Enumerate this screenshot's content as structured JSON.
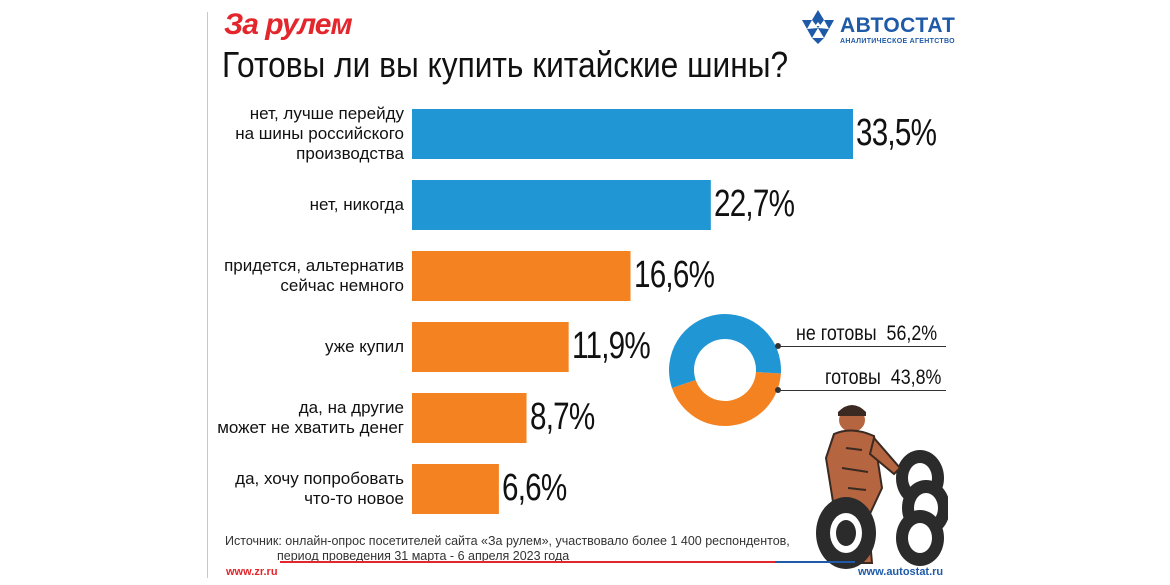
{
  "header": {
    "brand": "За рулем",
    "logo_name": "АВТОСТАТ",
    "logo_subtitle": "АНАЛИТИЧЕСКОЕ АГЕНТСТВО",
    "logo_icon": "snowflake-icon"
  },
  "chart_data": [
    {
      "type": "bar",
      "orientation": "horizontal",
      "title": "Готовы ли вы купить китайские шины?",
      "categories": [
        "нет, лучше перейду\nна шины российского\nпроизводства",
        "нет, никогда",
        "придется, альтернатив\nсейчас немного",
        "уже купил",
        "да, на другие\nможет не хватить денег",
        "да, хочу попробовать\nчто-то новое"
      ],
      "values": [
        33.5,
        22.7,
        16.6,
        11.9,
        8.7,
        6.6
      ],
      "value_labels": [
        "33,5%",
        "22,7%",
        "16,6%",
        "11,9%",
        "8,7%",
        "6,6%"
      ],
      "bar_colors": [
        "#2196d4",
        "#2196d4",
        "#f58220",
        "#f58220",
        "#f58220",
        "#f58220"
      ],
      "grid": false,
      "xlim": [
        0,
        33.5
      ]
    },
    {
      "type": "pie",
      "style": "donut",
      "labels": [
        "не готовы",
        "готовы"
      ],
      "values": [
        56.2,
        43.8
      ],
      "value_labels": [
        "56,2%",
        "43,8%"
      ],
      "colors": [
        "#2196d4",
        "#f58220"
      ],
      "legend_position": "right"
    }
  ],
  "footer": {
    "source_line1": "Источник: онлайн-опрос посетителей сайта «За рулем», участвовало более 1 400 респондентов,",
    "source_line2": "период проведения 31 марта - 6 апреля 2023 года",
    "left_url": "www.zr.ru",
    "right_url": "www.autostat.ru"
  },
  "colors": {
    "blue": "#2196d4",
    "orange": "#f58220",
    "brand_red": "#e3262b",
    "logo_blue": "#1e5aa8"
  },
  "illustration": "mechanic-with-tires-illustration"
}
